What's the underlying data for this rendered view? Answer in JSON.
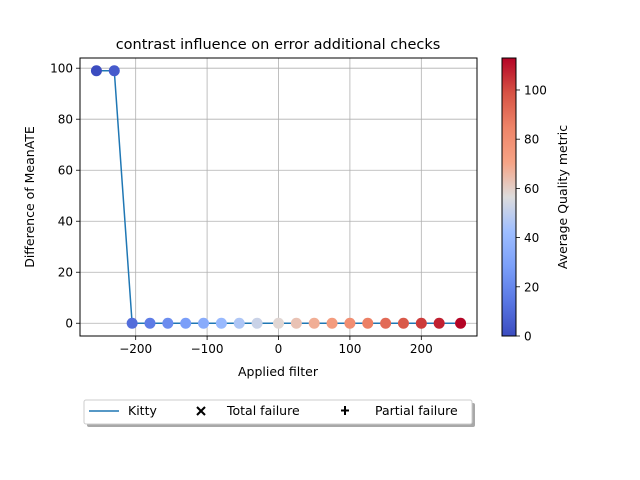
{
  "chart_data": {
    "type": "scatter",
    "title": "contrast influence on error additional checks",
    "xlabel": "Applied filter",
    "ylabel": "Difference of MeanATE",
    "xlim": [
      -278,
      278
    ],
    "ylim": [
      -5,
      104
    ],
    "xticks": [
      -200,
      -100,
      0,
      100,
      200
    ],
    "yticks": [
      0,
      20,
      40,
      60,
      80,
      100
    ],
    "grid": true,
    "x": [
      -255,
      -230,
      -205,
      -180,
      -155,
      -130,
      -105,
      -80,
      -55,
      -30,
      0,
      25,
      50,
      75,
      100,
      125,
      150,
      175,
      200,
      225,
      255
    ],
    "y": [
      99,
      99,
      0,
      0,
      0,
      0,
      0,
      0,
      0,
      0,
      0,
      0,
      0,
      0,
      0,
      0,
      0,
      0,
      0,
      0,
      0
    ],
    "color_values": [
      0,
      5,
      11,
      16,
      22,
      28,
      34,
      40,
      46,
      52,
      58,
      63,
      68,
      74,
      80,
      86,
      92,
      97,
      103,
      108,
      113
    ],
    "colorbar": {
      "label": "Average Quality metric",
      "cmap": "coolwarm",
      "range": [
        0,
        113
      ],
      "ticks": [
        0,
        20,
        40,
        60,
        80,
        100
      ]
    },
    "series": [
      {
        "name": "Kitty",
        "kind": "line",
        "color": "#1f77b4"
      }
    ],
    "legend": {
      "placement": "below",
      "entries": [
        {
          "label": "Kitty",
          "marker": "line",
          "color": "#1f77b4"
        },
        {
          "label": "Total failure",
          "marker": "x",
          "color": "#000000"
        },
        {
          "label": "Partial failure",
          "marker": "plus",
          "color": "#000000"
        }
      ]
    }
  }
}
